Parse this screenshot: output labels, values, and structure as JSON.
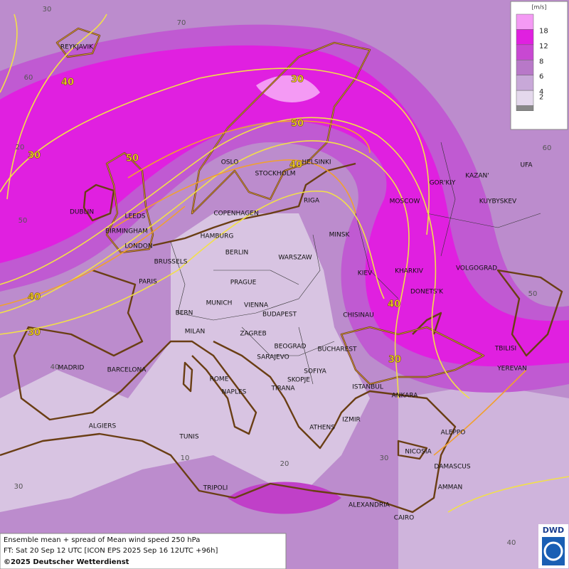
{
  "map": {
    "cities": [
      "REYKJAVIK",
      "DUBLIN",
      "LEEDS",
      "BIRMINGHAM",
      "LONDON",
      "BRUSSELS",
      "PARIS",
      "OSLO",
      "STOCKHOLM",
      "HELSINKI",
      "COPENHAGEN",
      "HAMBURG",
      "BERLIN",
      "RIGA",
      "MINSK",
      "WARSZAW",
      "MOSCOW",
      "GOR'KIY",
      "KAZAN'",
      "UFA",
      "KUYBYSKEV",
      "KIEV",
      "KHARKIV",
      "VOLGOGRAD",
      "DONETS'K",
      "PRAGUE",
      "MUNICH",
      "VIENNA",
      "BERN",
      "BUDAPEST",
      "CHISINAU",
      "MILAN",
      "ZAGREB",
      "BEOGRAD",
      "BUCHAREST",
      "TBILISI",
      "YEREVAN",
      "MADRID",
      "BARCELONA",
      "SARAJEVO",
      "SOFIYA",
      "ROME",
      "SKOPJE",
      "TIRANA",
      "NAPLES",
      "ISTANBUL",
      "ANKARA",
      "ALGIERS",
      "ATHENS",
      "IZMIR",
      "ALEPPO",
      "TUNIS",
      "NICOSIA",
      "DAMASCUS",
      "TRIPOLI",
      "AMMAN",
      "ALEXANDRIA",
      "CAIRO"
    ],
    "contour_labels": [
      40,
      30,
      30,
      50,
      50,
      40,
      40,
      30,
      40,
      30
    ],
    "graticule_labels": [
      30,
      70,
      60,
      20,
      60,
      50,
      50,
      40,
      10,
      20,
      30,
      30,
      40
    ]
  },
  "legend": {
    "unit": "[m/s]",
    "levels": [
      18,
      12,
      8,
      6,
      4,
      2
    ]
  },
  "footer": {
    "line1": "Ensemble mean + spread of Mean wind speed 250 hPa",
    "line2": "FT: Sat 20 Sep 12 UTC [ICON EPS 2025 Sep 16 12UTC +96h]",
    "line3": "©2025 Deutscher Wetterdienst"
  },
  "logo": "DWD"
}
